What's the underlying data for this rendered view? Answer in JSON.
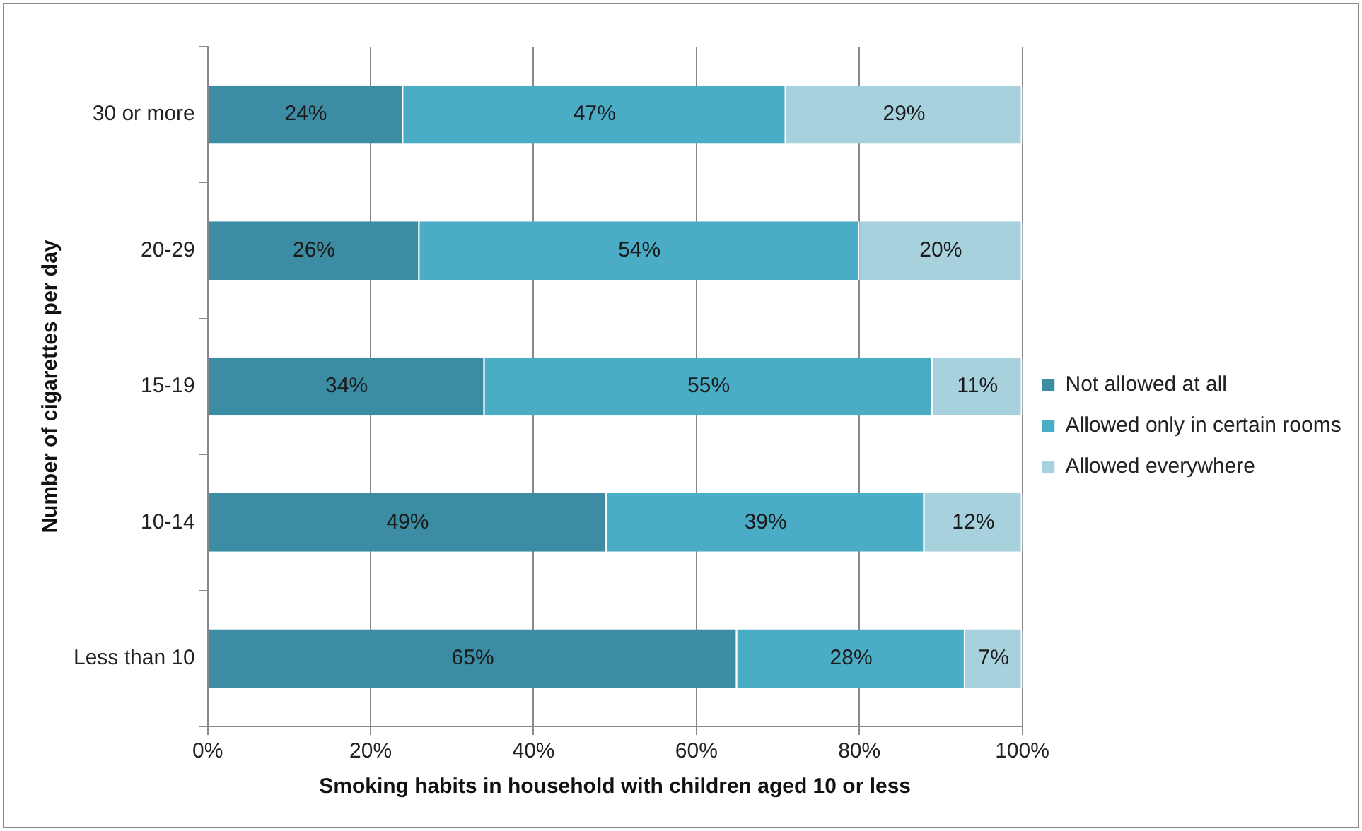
{
  "chart_data": {
    "type": "bar",
    "orientation": "horizontal",
    "stacked": true,
    "xlabel": "Smoking habits in household with children aged 10 or less",
    "ylabel": "Number of cigarettes per day",
    "categories": [
      "30 or more",
      "20-29",
      "15-19",
      "10-14",
      "Less than 10"
    ],
    "series": [
      {
        "name": "Not allowed at all",
        "color": "#3c8ca4",
        "values": [
          24,
          26,
          34,
          49,
          65
        ],
        "value_labels": [
          "24%",
          "26%",
          "34%",
          "49%",
          "65%"
        ]
      },
      {
        "name": "Allowed only in certain rooms",
        "color": "#4bacc6",
        "values": [
          47,
          54,
          55,
          39,
          28
        ],
        "value_labels": [
          "47%",
          "54%",
          "55%",
          "39%",
          "28%"
        ]
      },
      {
        "name": "Allowed everywhere",
        "color": "#a8d1de",
        "values": [
          29,
          20,
          11,
          12,
          7
        ],
        "value_labels": [
          "29%",
          "20%",
          "11%",
          "12%",
          "7%"
        ]
      }
    ],
    "xlim": [
      0,
      100
    ],
    "xticks": [
      {
        "value": 0,
        "label": "0%"
      },
      {
        "value": 20,
        "label": "20%"
      },
      {
        "value": 40,
        "label": "40%"
      },
      {
        "value": 60,
        "label": "60%"
      },
      {
        "value": 80,
        "label": "80%"
      },
      {
        "value": 100,
        "label": "100%"
      }
    ],
    "grid": "x",
    "legend": "right"
  }
}
